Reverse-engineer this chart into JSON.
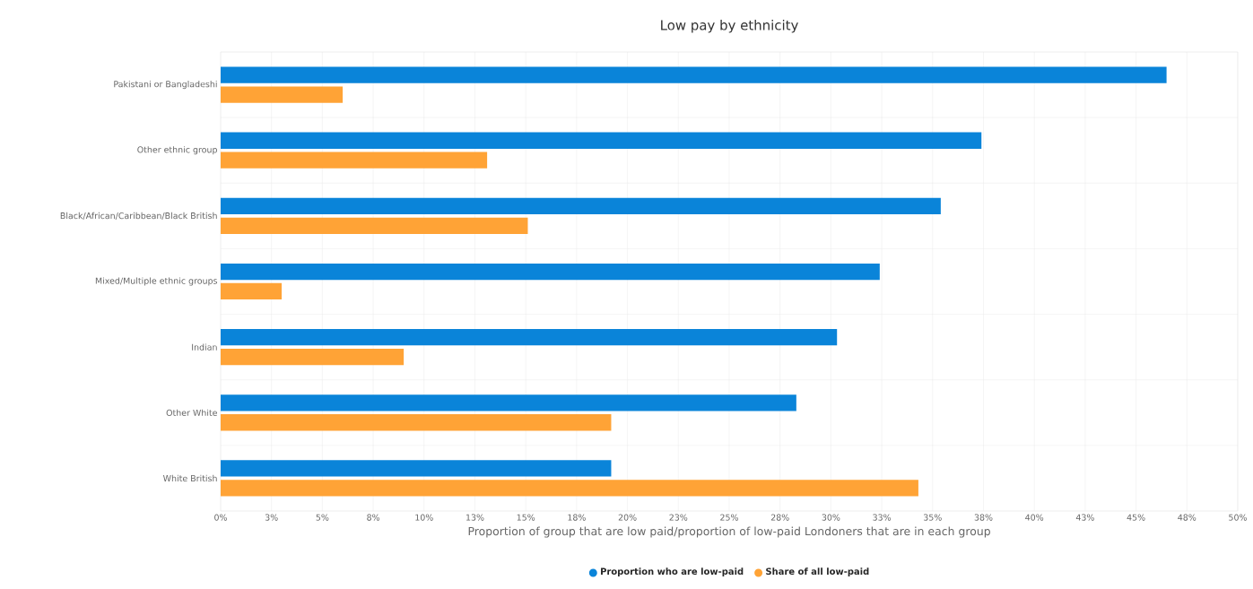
{
  "chart_data": {
    "type": "bar",
    "orientation": "horizontal",
    "title": "Low pay by ethnicity",
    "xlabel": "Proportion of group that are low paid/proportion of low-paid Londoners that are in each group",
    "categories": [
      "Pakistani or Bangladeshi",
      "Other ethnic group",
      "Black/African/Caribbean/Black British",
      "Mixed/Multiple ethnic groups",
      "Indian",
      "Other White",
      "White British"
    ],
    "series": [
      {
        "name": "Proportion who are low-paid",
        "color": "#0a84d9",
        "values": [
          46.5,
          37.4,
          35.4,
          32.4,
          30.3,
          28.3,
          19.2
        ]
      },
      {
        "name": "Share of all low-paid",
        "color": "#ffa336",
        "values": [
          6.0,
          13.1,
          15.1,
          3.0,
          9.0,
          19.2,
          34.3
        ]
      }
    ],
    "xlim": [
      0,
      50
    ],
    "xticks": [
      {
        "value": 0,
        "label": "0%"
      },
      {
        "value": 2.5,
        "label": "3%"
      },
      {
        "value": 5,
        "label": "5%"
      },
      {
        "value": 7.5,
        "label": "8%"
      },
      {
        "value": 10,
        "label": "10%"
      },
      {
        "value": 12.5,
        "label": "13%"
      },
      {
        "value": 15,
        "label": "15%"
      },
      {
        "value": 17.5,
        "label": "18%"
      },
      {
        "value": 20,
        "label": "20%"
      },
      {
        "value": 22.5,
        "label": "23%"
      },
      {
        "value": 25,
        "label": "25%"
      },
      {
        "value": 27.5,
        "label": "28%"
      },
      {
        "value": 30,
        "label": "30%"
      },
      {
        "value": 32.5,
        "label": "33%"
      },
      {
        "value": 35,
        "label": "35%"
      },
      {
        "value": 37.5,
        "label": "38%"
      },
      {
        "value": 40,
        "label": "40%"
      },
      {
        "value": 42.5,
        "label": "43%"
      },
      {
        "value": 45,
        "label": "45%"
      },
      {
        "value": 47.5,
        "label": "48%"
      },
      {
        "value": 50,
        "label": "50%"
      }
    ],
    "grid": true,
    "legend": "bottom"
  }
}
